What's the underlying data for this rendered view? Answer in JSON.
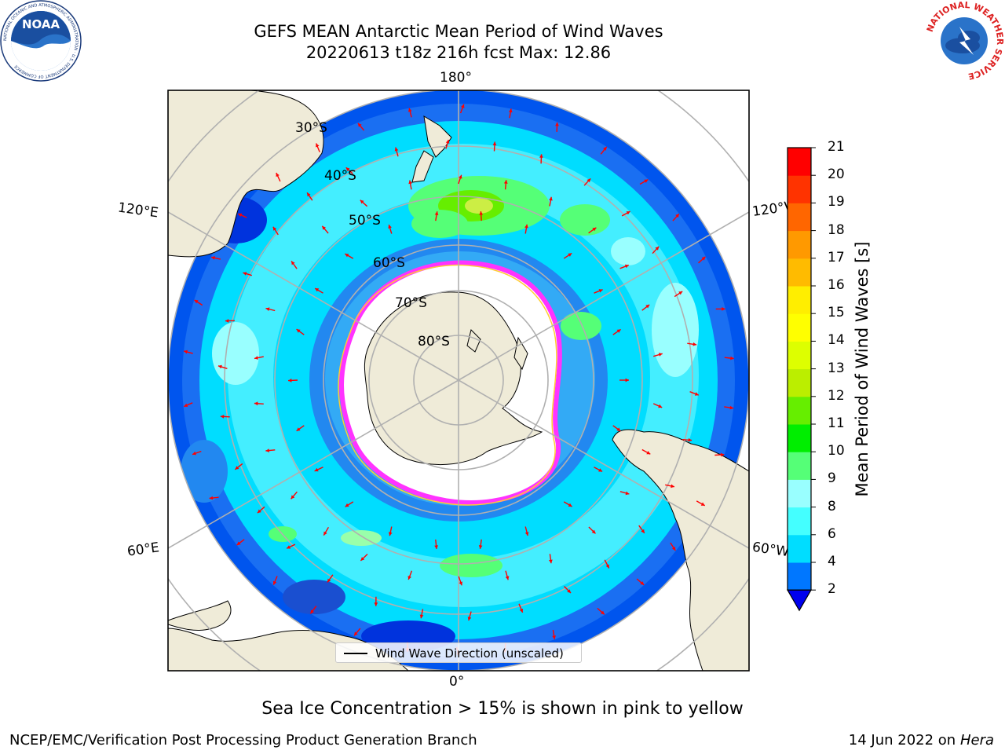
{
  "header": {
    "title_line1": "GEFS MEAN Antarctic Mean Period of Wind Waves",
    "title_line2": "20220613 t18z 216h fcst   Max: 12.86",
    "noaa_logo_text": "NOAA",
    "noaa_ring_text": "NATIONAL OCEANIC AND ATMOSPHERIC ADMINISTRATION · U.S. DEPARTMENT OF COMMERCE",
    "nws_ring_text": "NATIONAL WEATHER SERVICE"
  },
  "map": {
    "projection": "south-polar-stereographic",
    "longitude_labels": {
      "top": "180°",
      "bottom": "0°",
      "upper_left": "120°E",
      "upper_right": "120°W",
      "lower_left": "60°E",
      "lower_right": "60°W"
    },
    "latitude_labels": [
      "30°S",
      "40°S",
      "50°S",
      "60°S",
      "70°S",
      "80°S"
    ],
    "colors": {
      "land": "#efebd8",
      "sea_ice_interior": "#ffffff",
      "sea_ice_edge": "#ff33ff",
      "gridlines": "#b0b0b0",
      "arrows": "#ff0000"
    },
    "legend_label": "Wind Wave Direction (unscaled)"
  },
  "colorbar": {
    "label": "Mean Period of Wind Waves [s]",
    "ticks": [
      "2",
      "4",
      "6",
      "8",
      "9",
      "10",
      "11",
      "12",
      "13",
      "14",
      "15",
      "16",
      "17",
      "18",
      "19",
      "20",
      "21"
    ],
    "boundaries": [
      2,
      4,
      6,
      8,
      9,
      10,
      11,
      12,
      13,
      14,
      15,
      16,
      17,
      18,
      19,
      20,
      21
    ],
    "colors": [
      "#0077ff",
      "#00ddff",
      "#44ffff",
      "#99ffff",
      "#55ff77",
      "#00ee00",
      "#66ee00",
      "#bbee00",
      "#ddff00",
      "#ffff00",
      "#ffee00",
      "#ffbb00",
      "#ff9900",
      "#ff6600",
      "#ff3300",
      "#ff0000"
    ],
    "under_color": "#0000ee",
    "extend": "min"
  },
  "caption": "Sea Ice Concentration > 15% is shown in pink to yellow",
  "footer": {
    "left": "NCEP/EMC/Verification Post Processing Product Generation Branch",
    "right_date": "14 Jun 2022 on",
    "right_host": "Hera"
  }
}
